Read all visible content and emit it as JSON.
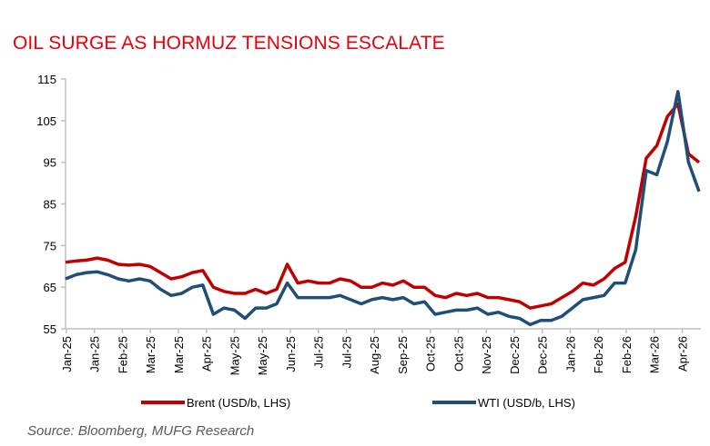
{
  "chart_data": {
    "type": "line",
    "title": "OIL SURGE AS HORMUZ TENSIONS ESCALATE",
    "source": "Source: Bloomberg, MUFG Research",
    "ylim": [
      55,
      115
    ],
    "yticks": [
      55,
      65,
      75,
      85,
      95,
      105,
      115
    ],
    "xtick_labels": [
      "Jan-25",
      "Jan-25",
      "Feb-25",
      "Mar-25",
      "Mar-25",
      "Apr-25",
      "May-25",
      "May-25",
      "Jun-25",
      "Jul-25",
      "Jul-25",
      "Aug-25",
      "Sep-25",
      "Oct-25",
      "Oct-25",
      "Nov-25",
      "Dec-25",
      "Dec-25",
      "Jan-26",
      "Feb-26",
      "Feb-26",
      "Mar-26",
      "Apr-26"
    ],
    "grid": false,
    "legend_position": "bottom",
    "series": [
      {
        "name": "Brent (USD/b, LHS)",
        "color": "#c00000",
        "values": [
          71,
          71.3,
          71.5,
          72,
          71.5,
          70.5,
          70.3,
          70.5,
          70,
          68.5,
          67,
          67.5,
          68.5,
          69,
          65,
          64,
          63.5,
          63.5,
          64.5,
          63.5,
          64.5,
          70.5,
          66,
          66.5,
          66,
          66,
          67,
          66.5,
          65,
          65,
          66,
          65.5,
          66.5,
          65,
          65,
          63,
          62.5,
          63.5,
          63,
          63.5,
          62.5,
          62.5,
          62,
          61.5,
          60,
          60.5,
          61,
          62.5,
          64,
          66,
          65.5,
          67,
          69.5,
          71,
          82,
          96,
          99,
          106,
          109,
          97,
          95
        ]
      },
      {
        "name": "WTI (USD/b, LHS)",
        "color": "#1f4e79",
        "values": [
          67,
          68,
          68.5,
          68.7,
          68,
          67,
          66.5,
          67,
          66.5,
          64.5,
          63,
          63.5,
          65,
          65.5,
          58.5,
          60,
          59.5,
          57.5,
          60,
          60,
          61,
          66,
          62.5,
          62.5,
          62.5,
          62.5,
          63,
          62,
          61,
          62,
          62.5,
          62,
          62.5,
          61,
          61.5,
          58.5,
          59,
          59.5,
          59.5,
          60,
          58.5,
          59,
          58,
          57.5,
          56,
          57,
          57,
          58,
          60,
          62,
          62.5,
          63,
          66,
          66,
          74,
          93,
          92,
          100,
          112,
          95,
          88
        ]
      }
    ]
  }
}
